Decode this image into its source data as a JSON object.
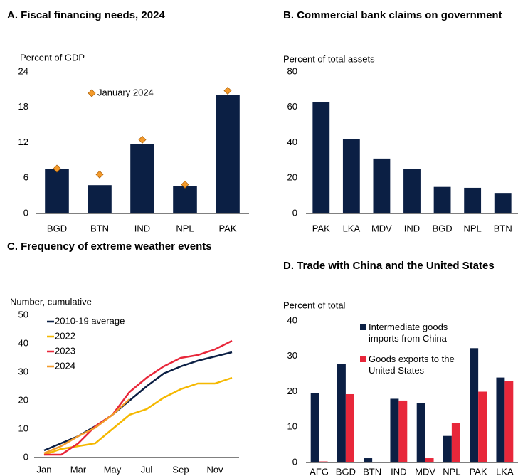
{
  "chart_data": [
    {
      "type": "bar",
      "title": "A. Fiscal financing needs, 2024",
      "ylabel": "Percent of GDP",
      "categories": [
        "BGD",
        "BTN",
        "IND",
        "NPL",
        "PAK"
      ],
      "values": [
        7.5,
        4.8,
        11.7,
        4.7,
        20.1
      ],
      "color": "#0b1f44",
      "markers": {
        "name": "January 2024",
        "values": [
          7.6,
          6.6,
          12.5,
          4.9,
          20.8
        ],
        "color": "#f39a2b"
      },
      "ylim": [
        0,
        24
      ],
      "yticks": [
        0,
        6,
        12,
        18,
        24
      ]
    },
    {
      "type": "bar",
      "title": "B. Commercial bank claims on government",
      "ylabel": "Percent of total assets",
      "categories": [
        "PAK",
        "LKA",
        "MDV",
        "IND",
        "BGD",
        "NPL",
        "BTN"
      ],
      "values": [
        62.8,
        42,
        31,
        25,
        15,
        14.5,
        11.6
      ],
      "color": "#0b1f44",
      "ylim": [
        0,
        80
      ],
      "yticks": [
        0,
        20,
        40,
        60,
        80
      ]
    },
    {
      "type": "line",
      "title": "C. Frequency of extreme weather events",
      "ylabel": "Number, cumulative",
      "categories": [
        "Jan",
        null,
        "Mar",
        null,
        "May",
        null,
        "Jul",
        null,
        "Sep",
        null,
        "Nov",
        null
      ],
      "series": [
        {
          "name": "2010-19 average",
          "color": "#0b1f44",
          "values": [
            2.5,
            5,
            7.5,
            11,
            15,
            20,
            25,
            29.5,
            32,
            34,
            35.5,
            37
          ]
        },
        {
          "name": "2022",
          "color": "#f5b800",
          "values": [
            1,
            3,
            4,
            5,
            10,
            15,
            17,
            21,
            24,
            26,
            26,
            28
          ]
        },
        {
          "name": "2023",
          "color": "#e8273a",
          "values": [
            1,
            1,
            5,
            11,
            15,
            23,
            28,
            32,
            35,
            36,
            38,
            41
          ]
        },
        {
          "name": "2024",
          "color": "#f39c2b",
          "values": [
            1.5,
            4,
            7.5,
            10.5,
            15,
            20.5,
            null,
            null,
            null,
            null,
            null,
            null
          ]
        }
      ],
      "ylim": [
        0,
        50
      ],
      "yticks": [
        0,
        10,
        20,
        30,
        40,
        50
      ]
    },
    {
      "type": "grouped_bar",
      "title": "D. Trade with China and the United States",
      "ylabel": "Percent of total",
      "categories": [
        "AFG",
        "BGD",
        "BTN",
        "IND",
        "MDV",
        "NPL",
        "PAK",
        "LKA"
      ],
      "series": [
        {
          "name": "Intermediate goods imports from China",
          "color": "#0b1f44",
          "values": [
            19.5,
            27.8,
            1.2,
            18,
            16.8,
            7.5,
            32.3,
            24
          ]
        },
        {
          "name": "Goods exports to the United States",
          "color": "#e8273a",
          "values": [
            0.3,
            19.3,
            0,
            17.5,
            1.2,
            11.2,
            20,
            23
          ]
        }
      ],
      "ylim": [
        0,
        40
      ],
      "yticks": [
        0,
        10,
        20,
        30,
        40
      ]
    }
  ]
}
